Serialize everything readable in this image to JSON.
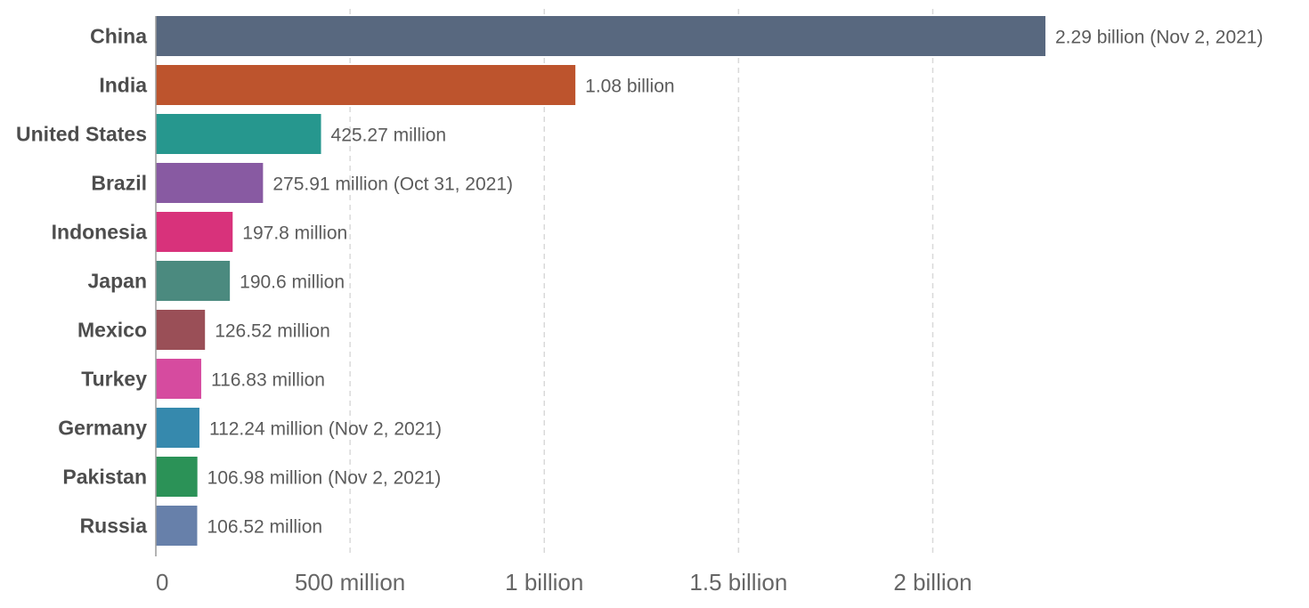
{
  "chart_data": {
    "type": "bar",
    "orientation": "horizontal",
    "categories": [
      "China",
      "India",
      "United States",
      "Brazil",
      "Indonesia",
      "Japan",
      "Mexico",
      "Turkey",
      "Germany",
      "Pakistan",
      "Russia"
    ],
    "values": [
      2290000000,
      1080000000,
      425270000,
      275910000,
      197800000,
      190600000,
      126520000,
      116830000,
      112240000,
      106980000,
      106520000
    ],
    "value_labels": [
      "2.29 billion (Nov 2, 2021)",
      "1.08 billion",
      "425.27 million",
      "275.91 million (Oct 31, 2021)",
      "197.8 million",
      "190.6 million",
      "126.52 million",
      "116.83 million",
      "112.24 million (Nov 2, 2021)",
      "106.98 million (Nov 2, 2021)",
      "106.52 million"
    ],
    "colors": [
      "#58687f",
      "#bd542d",
      "#26978e",
      "#885aa2",
      "#d8327b",
      "#4b8a7f",
      "#9a4f57",
      "#d64b9f",
      "#3689ad",
      "#2b9257",
      "#6780aa"
    ],
    "x_ticks": [
      {
        "value": 0,
        "label": "0"
      },
      {
        "value": 500000000,
        "label": "500 million"
      },
      {
        "value": 1000000000,
        "label": "1 billion"
      },
      {
        "value": 1500000000,
        "label": "1.5 billion"
      },
      {
        "value": 2000000000,
        "label": "2 billion"
      }
    ],
    "xlim": [
      0,
      2290000000
    ],
    "title": "",
    "xlabel": "",
    "ylabel": "",
    "grid": "vertical dashed",
    "legend": "none"
  }
}
